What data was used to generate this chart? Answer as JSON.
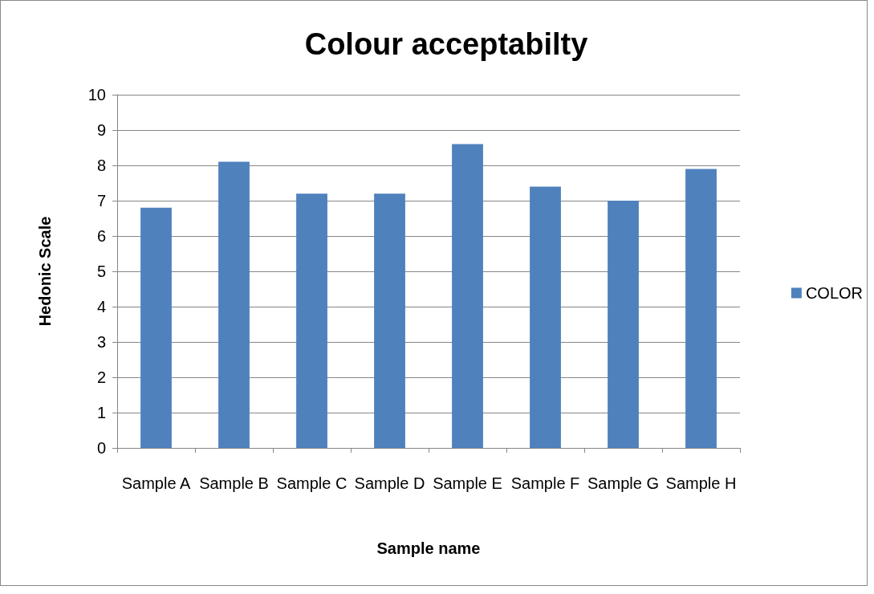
{
  "chart_data": {
    "type": "bar",
    "title": "Colour acceptabilty",
    "xlabel": "Sample name",
    "ylabel": "Hedonic Scale",
    "categories": [
      "Sample A",
      "Sample B",
      "Sample C",
      "Sample D",
      "Sample E",
      "Sample F",
      "Sample G",
      "Sample H"
    ],
    "series": [
      {
        "name": "COLOR",
        "color": "#4f81bd",
        "values": [
          6.8,
          8.1,
          7.2,
          7.2,
          8.6,
          7.4,
          7.0,
          7.9
        ]
      }
    ],
    "ylim": [
      0,
      10
    ],
    "yticks": [
      0,
      1,
      2,
      3,
      4,
      5,
      6,
      7,
      8,
      9,
      10
    ],
    "grid": "y",
    "legend": "right"
  }
}
